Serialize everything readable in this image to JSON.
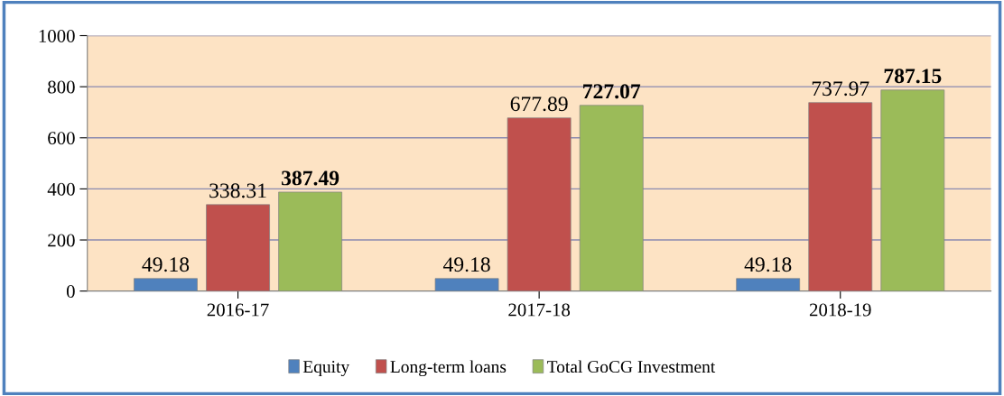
{
  "chart_data": {
    "type": "bar",
    "categories": [
      "2016-17",
      "2017-18",
      "2018-19"
    ],
    "series": [
      {
        "name": "Equity",
        "color": "#4f81bd",
        "values": [
          49.18,
          49.18,
          49.18
        ]
      },
      {
        "name": "Long-term loans",
        "color": "#c0504d",
        "values": [
          338.31,
          677.89,
          737.97
        ]
      },
      {
        "name": "Total GoCG Investment",
        "color": "#9bbb59",
        "values": [
          387.49,
          727.07,
          787.15
        ]
      }
    ],
    "ylim": [
      0,
      1000
    ],
    "yticks": [
      0,
      200,
      400,
      600,
      800,
      1000
    ],
    "grid": "y",
    "legend": "bottom",
    "data_labels": true
  }
}
